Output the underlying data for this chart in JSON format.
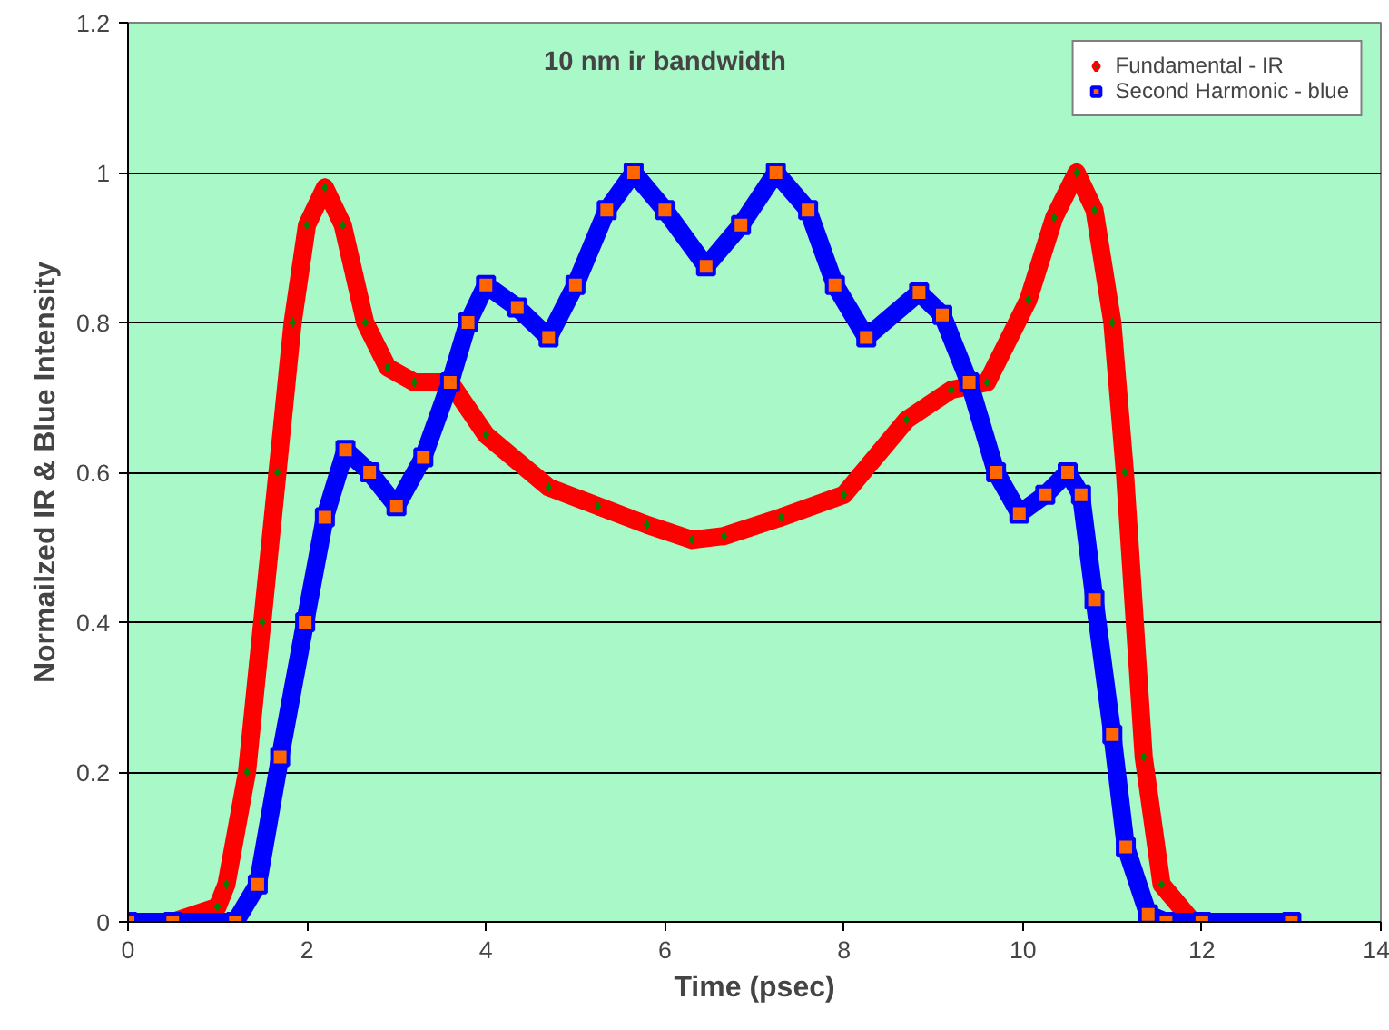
{
  "chart_data": {
    "type": "line",
    "title": "10 nm ir bandwidth",
    "xlabel": "Time (psec)",
    "ylabel": "Normailzed IR & Blue Intensity",
    "xlim": [
      0,
      14
    ],
    "xticks": [
      0,
      2,
      4,
      6,
      8,
      10,
      12,
      14
    ],
    "ylim": [
      0,
      1.2
    ],
    "yticks": [
      0,
      0.2,
      0.4,
      0.6,
      0.8,
      1,
      1.2
    ],
    "grid": "y",
    "legend": "top right",
    "series": [
      {
        "name": "Fundamental - IR",
        "color": "#ff0000",
        "marker": "diamond",
        "x": [
          0,
          0.5,
          1.0,
          1.1,
          1.33,
          1.5,
          1.67,
          1.84,
          2.0,
          2.2,
          2.4,
          2.65,
          2.9,
          3.2,
          3.6,
          4.0,
          4.7,
          5.25,
          5.8,
          6.3,
          6.66,
          7.3,
          8.0,
          8.7,
          9.2,
          9.6,
          10.06,
          10.35,
          10.6,
          10.8,
          11.0,
          11.14,
          11.35,
          11.55,
          11.9,
          12.5,
          13
        ],
        "values": [
          0,
          0,
          0.02,
          0.05,
          0.2,
          0.4,
          0.6,
          0.8,
          0.93,
          0.98,
          0.93,
          0.8,
          0.74,
          0.72,
          0.72,
          0.65,
          0.58,
          0.555,
          0.53,
          0.51,
          0.515,
          0.54,
          0.57,
          0.67,
          0.71,
          0.72,
          0.83,
          0.94,
          1.0,
          0.95,
          0.8,
          0.6,
          0.22,
          0.05,
          0,
          0,
          0
        ]
      },
      {
        "name": "Second Harmonic - blue",
        "color": "#0000ff",
        "marker": "square",
        "x": [
          0,
          0.5,
          1.2,
          1.45,
          1.7,
          1.98,
          2.2,
          2.43,
          2.7,
          3.0,
          3.3,
          3.6,
          3.8,
          4.0,
          4.35,
          4.7,
          5.0,
          5.35,
          5.65,
          6.0,
          6.46,
          6.85,
          7.24,
          7.6,
          7.9,
          8.25,
          8.84,
          9.1,
          9.4,
          9.7,
          9.96,
          10.25,
          10.5,
          10.65,
          10.8,
          11.0,
          11.15,
          11.4,
          11.6,
          12.0,
          13
        ],
        "values": [
          0,
          0,
          0,
          0.05,
          0.22,
          0.4,
          0.54,
          0.63,
          0.6,
          0.555,
          0.62,
          0.72,
          0.8,
          0.85,
          0.82,
          0.78,
          0.85,
          0.95,
          1.0,
          0.95,
          0.875,
          0.93,
          1.0,
          0.95,
          0.85,
          0.78,
          0.84,
          0.81,
          0.72,
          0.6,
          0.545,
          0.57,
          0.6,
          0.57,
          0.43,
          0.25,
          0.1,
          0.01,
          0,
          0,
          0
        ]
      }
    ]
  }
}
